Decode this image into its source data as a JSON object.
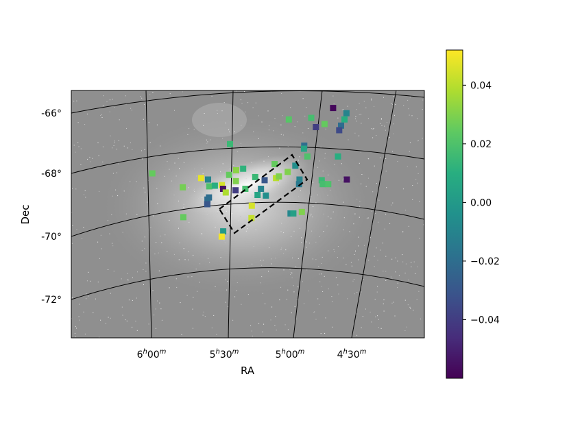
{
  "chart_data": {
    "type": "scatter",
    "xlabel": "RA",
    "ylabel": "Dec",
    "x_tick_labels": [
      {
        "h": "6",
        "hsup": "h",
        "m": "00",
        "msup": "m"
      },
      {
        "h": "5",
        "hsup": "h",
        "m": "30",
        "msup": "m"
      },
      {
        "h": "5",
        "hsup": "h",
        "m": "00",
        "msup": "m"
      },
      {
        "h": "4",
        "hsup": "h",
        "m": "30",
        "msup": "m"
      }
    ],
    "y_tick_labels": [
      "-66°",
      "-68°",
      "-70°",
      "-72°"
    ],
    "colorbar": {
      "colormap": "viridis",
      "range": [
        -0.06,
        0.052
      ],
      "ticks": [
        0.04,
        0.02,
        0.0,
        -0.02,
        -0.04
      ],
      "tick_labels": [
        "0.04",
        "0.02",
        "0.00",
        "−0.02",
        "−0.04"
      ]
    },
    "background": "grayscale sky image",
    "grid": "curved RA/Dec graticule",
    "region": "dashed rectangle",
    "points": [
      {
        "ra": 5.972,
        "dec": -68.0,
        "c": 0.025
      },
      {
        "ra": 5.75,
        "dec": -68.45,
        "c": 0.028
      },
      {
        "ra": 5.62,
        "dec": -68.15,
        "c": 0.048
      },
      {
        "ra": 5.57,
        "dec": -68.2,
        "c": -0.01
      },
      {
        "ra": 5.56,
        "dec": -68.42,
        "c": 0.02
      },
      {
        "ra": 5.52,
        "dec": -68.4,
        "c": 0.01
      },
      {
        "ra": 5.57,
        "dec": -68.85,
        "c": -0.02
      },
      {
        "ra": 5.57,
        "dec": -69.0,
        "c": -0.025
      },
      {
        "ra": 5.47,
        "dec": -68.38,
        "c": 0.045
      },
      {
        "ra": 5.46,
        "dec": -68.5,
        "c": -0.055
      },
      {
        "ra": 5.44,
        "dec": -68.62,
        "c": 0.038
      },
      {
        "ra": 5.42,
        "dec": -67.05,
        "c": 0.015
      },
      {
        "ra": 5.42,
        "dec": -68.05,
        "c": 0.025
      },
      {
        "ra": 5.37,
        "dec": -67.9,
        "c": 0.032
      },
      {
        "ra": 5.37,
        "dec": -68.25,
        "c": 0.03
      },
      {
        "ra": 5.32,
        "dec": -67.85,
        "c": 0.012
      },
      {
        "ra": 5.37,
        "dec": -68.55,
        "c": -0.04
      },
      {
        "ra": 5.3,
        "dec": -68.5,
        "c": 0.018
      },
      {
        "ra": 5.23,
        "dec": -68.12,
        "c": 0.015
      },
      {
        "ra": 5.18,
        "dec": -68.5,
        "c": -0.01
      },
      {
        "ra": 5.2,
        "dec": -68.7,
        "c": 0.005
      },
      {
        "ra": 5.14,
        "dec": -68.72,
        "c": -0.005
      },
      {
        "ra": 5.25,
        "dec": -69.05,
        "c": 0.045
      },
      {
        "ra": 5.25,
        "dec": -69.45,
        "c": 0.042
      },
      {
        "ra": 5.16,
        "dec": -68.22,
        "c": -0.03
      },
      {
        "ra": 5.08,
        "dec": -68.15,
        "c": 0.04
      },
      {
        "ra": 5.06,
        "dec": -68.1,
        "c": 0.03
      },
      {
        "ra": 5.1,
        "dec": -67.7,
        "c": 0.025
      },
      {
        "ra": 5.0,
        "dec": -67.95,
        "c": 0.03
      },
      {
        "ra": 4.95,
        "dec": -67.75,
        "c": -0.005
      },
      {
        "ra": 4.91,
        "dec": -68.2,
        "c": -0.01
      },
      {
        "ra": 4.91,
        "dec": -68.35,
        "c": -0.015
      },
      {
        "ra": 4.9,
        "dec": -67.1,
        "c": -0.02
      },
      {
        "ra": 4.9,
        "dec": -67.2,
        "c": 0.005
      },
      {
        "ra": 4.87,
        "dec": -67.45,
        "c": 0.02
      },
      {
        "ra": 5.03,
        "dec": -66.25,
        "c": 0.022
      },
      {
        "ra": 4.87,
        "dec": -66.2,
        "c": 0.018
      },
      {
        "ra": 4.83,
        "dec": -66.5,
        "c": -0.04
      },
      {
        "ra": 4.77,
        "dec": -66.4,
        "c": 0.025
      },
      {
        "ra": 4.72,
        "dec": -65.88,
        "c": -0.058
      },
      {
        "ra": 4.62,
        "dec": -66.05,
        "c": -0.01
      },
      {
        "ra": 4.63,
        "dec": -66.25,
        "c": 0.01
      },
      {
        "ra": 4.65,
        "dec": -66.45,
        "c": -0.02
      },
      {
        "ra": 4.66,
        "dec": -66.6,
        "c": -0.035
      },
      {
        "ra": 4.65,
        "dec": -67.45,
        "c": 0.01
      },
      {
        "ra": 4.75,
        "dec": -68.22,
        "c": 0.015
      },
      {
        "ra": 4.74,
        "dec": -68.35,
        "c": 0.018
      },
      {
        "ra": 4.7,
        "dec": -68.35,
        "c": 0.02
      },
      {
        "ra": 4.57,
        "dec": -68.2,
        "c": -0.055
      },
      {
        "ra": 4.95,
        "dec": -69.3,
        "c": -0.008
      },
      {
        "ra": 4.93,
        "dec": -69.3,
        "c": 0.003
      },
      {
        "ra": 4.87,
        "dec": -69.25,
        "c": 0.03
      },
      {
        "ra": 5.74,
        "dec": -69.42,
        "c": 0.025
      },
      {
        "ra": 5.57,
        "dec": -69.0,
        "c": -0.03
      },
      {
        "ra": 5.45,
        "dec": -69.88,
        "c": 0.0
      },
      {
        "ra": 5.46,
        "dec": -70.05,
        "c": 0.05
      },
      {
        "ra": 5.56,
        "dec": -68.78,
        "c": -0.02
      }
    ]
  }
}
